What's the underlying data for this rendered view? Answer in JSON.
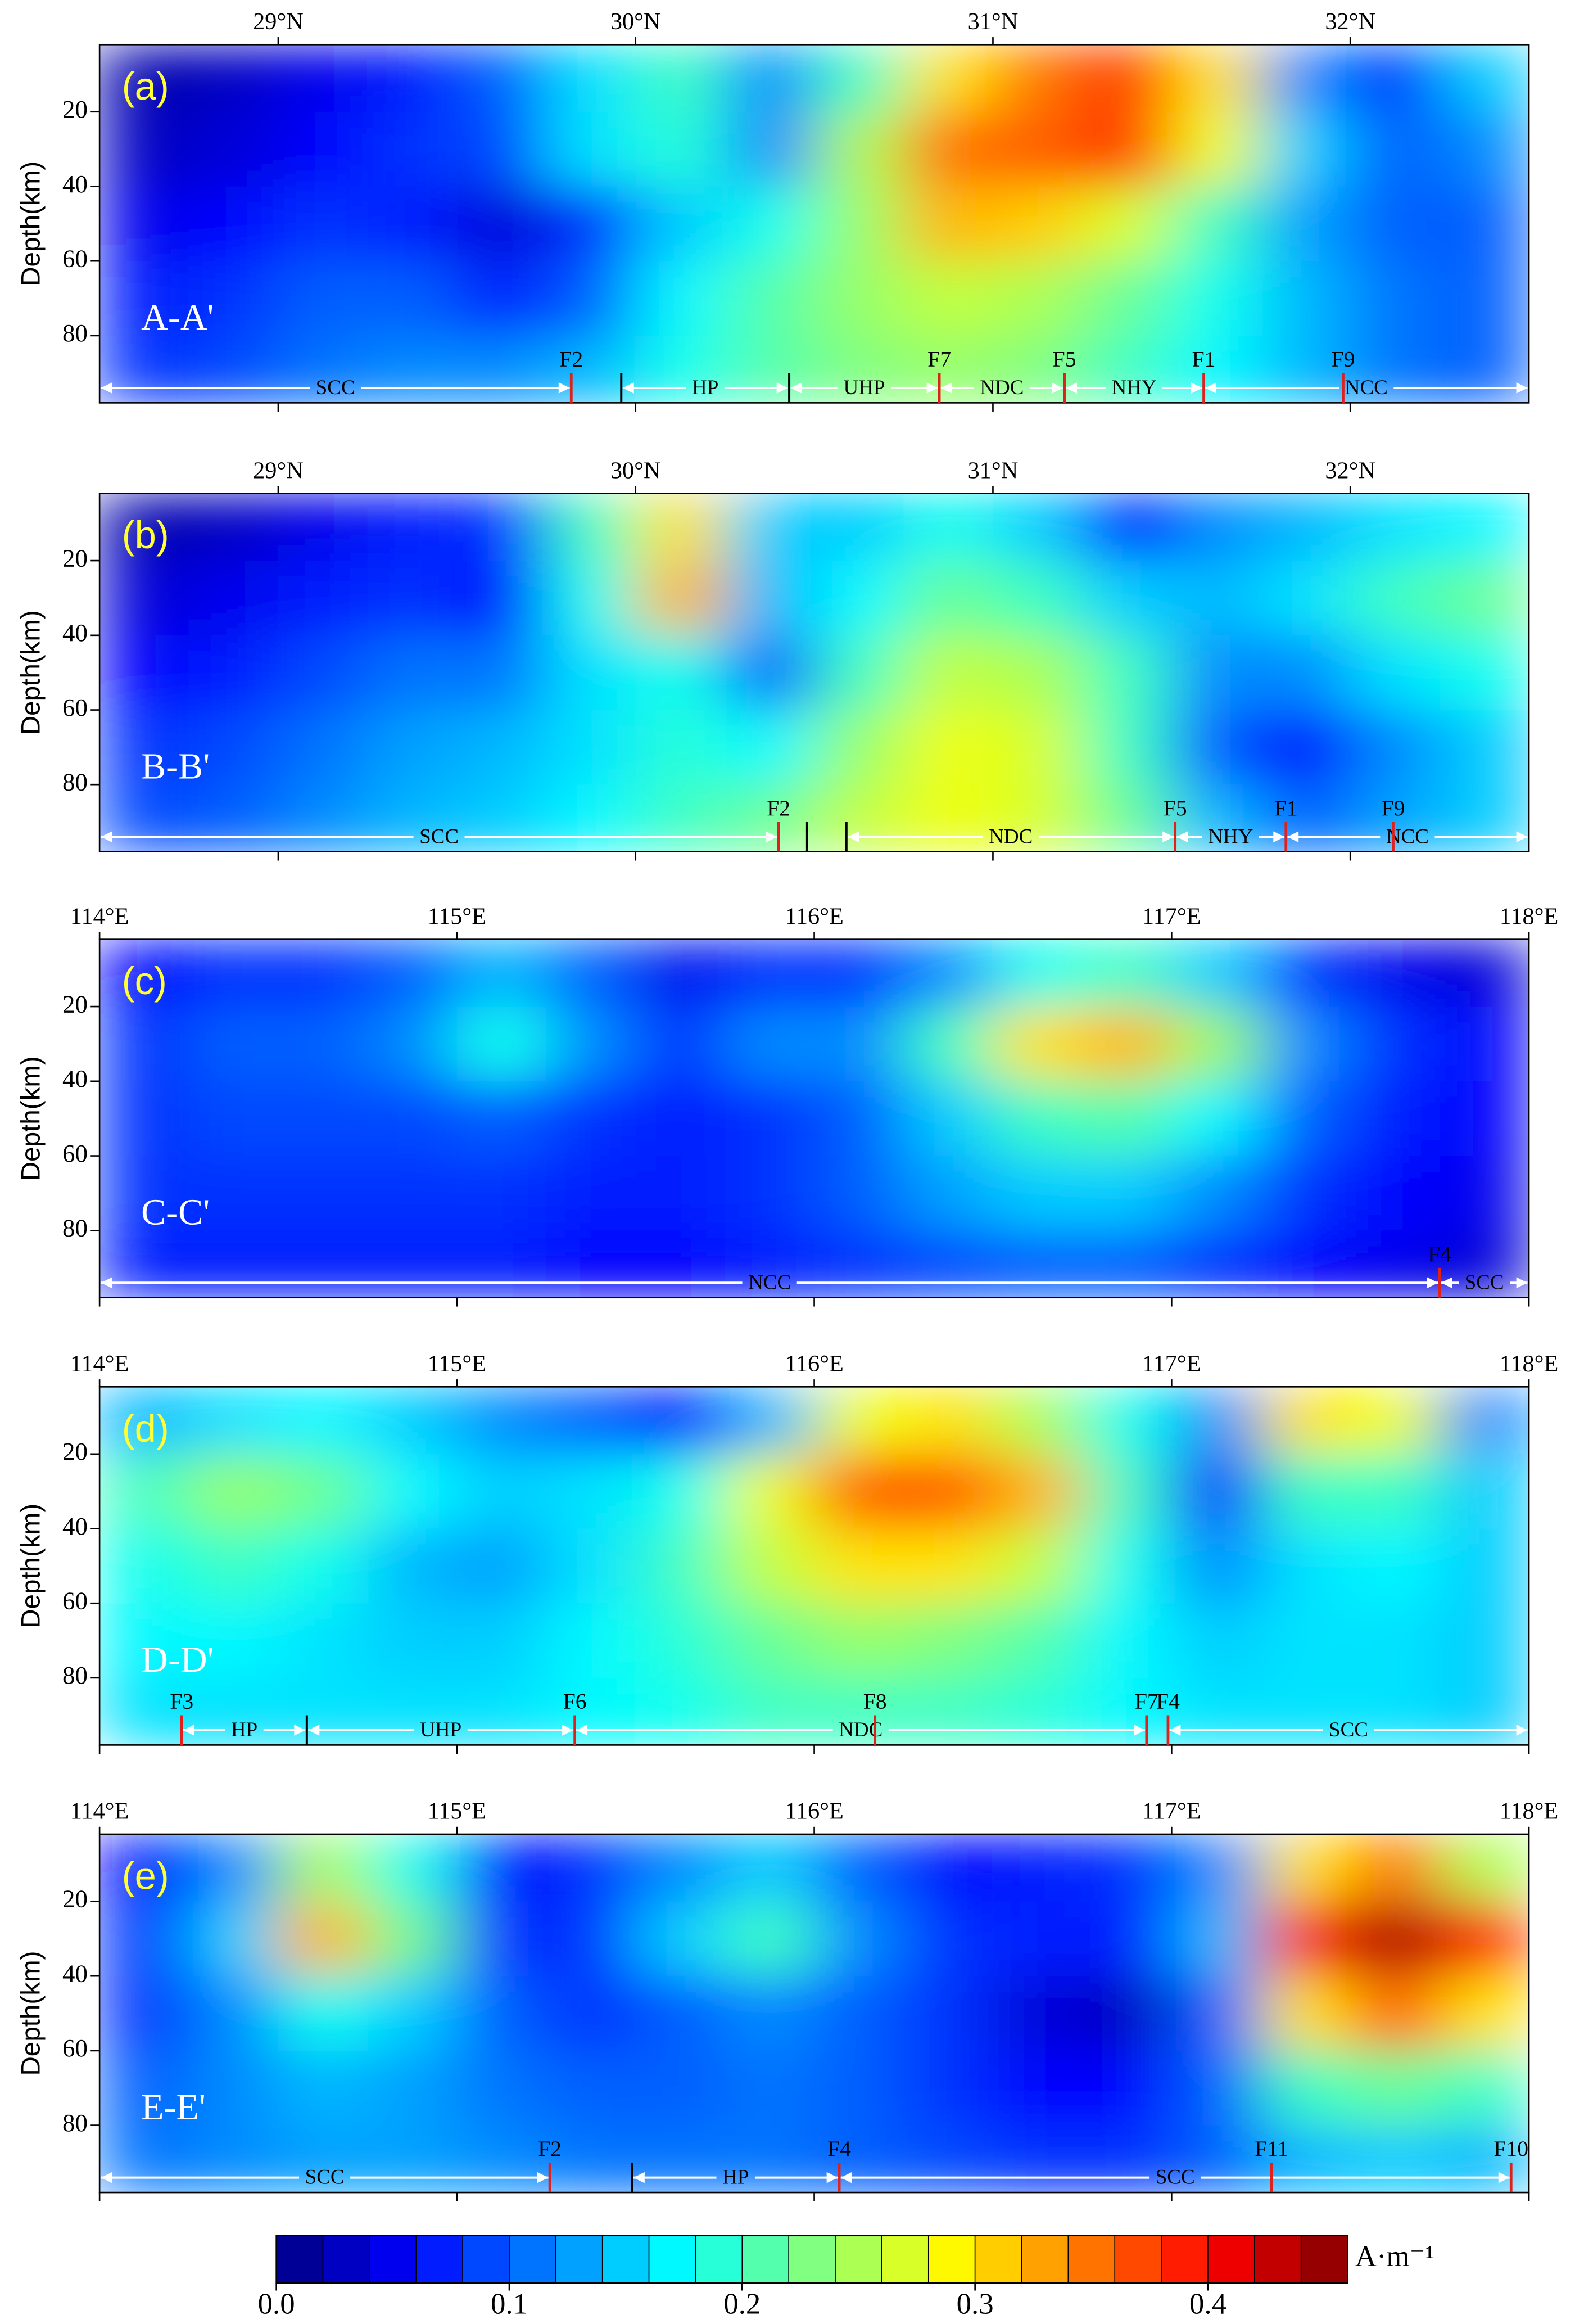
{
  "chart_data": [
    {
      "type": "heatmap",
      "panel": "(a)",
      "section": "A-A'",
      "ylabel": "Depth(km)",
      "xlim": [
        28.5,
        32.5
      ],
      "xticks": [
        {
          "value": 29,
          "label": "29°N"
        },
        {
          "value": 30,
          "label": "30°N"
        },
        {
          "value": 31,
          "label": "31°N"
        },
        {
          "value": 32,
          "label": "32°N"
        }
      ],
      "ylim": [
        98,
        2
      ],
      "yticks": [
        20,
        40,
        60,
        80
      ],
      "x": [
        28.625,
        28.875,
        29.125,
        29.375,
        29.625,
        29.875,
        30.125,
        30.375,
        30.625,
        30.875,
        31.125,
        31.375,
        31.625,
        31.875,
        32.125,
        32.375
      ],
      "y": [
        10,
        30,
        50,
        70,
        90
      ],
      "z": [
        [
          0.02,
          0.03,
          0.05,
          0.07,
          0.1,
          0.16,
          0.2,
          0.12,
          0.2,
          0.3,
          0.35,
          0.38,
          0.3,
          0.12,
          0.08,
          0.15
        ],
        [
          0.03,
          0.04,
          0.06,
          0.08,
          0.09,
          0.16,
          0.19,
          0.12,
          0.25,
          0.35,
          0.36,
          0.38,
          0.28,
          0.15,
          0.1,
          0.12
        ],
        [
          0.05,
          0.06,
          0.08,
          0.07,
          0.04,
          0.08,
          0.15,
          0.18,
          0.24,
          0.32,
          0.31,
          0.27,
          0.2,
          0.13,
          0.1,
          0.1
        ],
        [
          0.07,
          0.08,
          0.1,
          0.1,
          0.07,
          0.1,
          0.17,
          0.21,
          0.24,
          0.26,
          0.25,
          0.22,
          0.18,
          0.14,
          0.11,
          0.1
        ],
        [
          0.08,
          0.09,
          0.11,
          0.12,
          0.12,
          0.14,
          0.18,
          0.21,
          0.23,
          0.24,
          0.23,
          0.2,
          0.17,
          0.14,
          0.11,
          0.1
        ]
      ],
      "faults": [
        {
          "name": "F2",
          "x": 29.82
        },
        {
          "name": "F7",
          "x": 30.85
        },
        {
          "name": "F5",
          "x": 31.2
        },
        {
          "name": "F1",
          "x": 31.59
        },
        {
          "name": "F9",
          "x": 31.98
        }
      ],
      "boundaries": [
        29.96,
        30.43
      ],
      "units": [
        {
          "name": "SCC",
          "x0": 28.5,
          "x1": 29.82
        },
        {
          "name": "HP",
          "x0": 29.96,
          "x1": 30.43
        },
        {
          "name": "UHP",
          "x0": 30.43,
          "x1": 30.85
        },
        {
          "name": "NDC",
          "x0": 30.85,
          "x1": 31.2
        },
        {
          "name": "NHY",
          "x0": 31.2,
          "x1": 31.59
        },
        {
          "name": "NCC",
          "x0": 31.59,
          "x1": 32.5
        }
      ]
    },
    {
      "type": "heatmap",
      "panel": "(b)",
      "section": "B-B'",
      "ylabel": "Depth(km)",
      "xlim": [
        28.5,
        32.5
      ],
      "xticks": [
        {
          "value": 29,
          "label": "29°N"
        },
        {
          "value": 30,
          "label": "30°N"
        },
        {
          "value": 31,
          "label": "31°N"
        },
        {
          "value": 32,
          "label": "32°N"
        }
      ],
      "ylim": [
        98,
        2
      ],
      "yticks": [
        20,
        40,
        60,
        80
      ],
      "x": [
        28.625,
        28.875,
        29.125,
        29.375,
        29.625,
        29.875,
        30.125,
        30.375,
        30.625,
        30.875,
        31.125,
        31.375,
        31.625,
        31.875,
        32.125,
        32.375
      ],
      "y": [
        10,
        30,
        50,
        70,
        90
      ],
      "z": [
        [
          0.02,
          0.03,
          0.05,
          0.07,
          0.08,
          0.2,
          0.3,
          0.15,
          0.15,
          0.18,
          0.15,
          0.06,
          0.12,
          0.14,
          0.16,
          0.17
        ],
        [
          0.04,
          0.05,
          0.07,
          0.08,
          0.06,
          0.18,
          0.32,
          0.14,
          0.17,
          0.22,
          0.2,
          0.15,
          0.14,
          0.16,
          0.2,
          0.22
        ],
        [
          0.06,
          0.07,
          0.09,
          0.11,
          0.11,
          0.16,
          0.18,
          0.1,
          0.2,
          0.26,
          0.25,
          0.2,
          0.12,
          0.12,
          0.16,
          0.18
        ],
        [
          0.08,
          0.09,
          0.11,
          0.13,
          0.14,
          0.16,
          0.19,
          0.17,
          0.24,
          0.28,
          0.27,
          0.2,
          0.1,
          0.06,
          0.12,
          0.15
        ],
        [
          0.09,
          0.1,
          0.12,
          0.14,
          0.15,
          0.17,
          0.2,
          0.22,
          0.26,
          0.28,
          0.27,
          0.22,
          0.14,
          0.1,
          0.13,
          0.15
        ]
      ],
      "faults": [
        {
          "name": "F2",
          "x": 30.4
        },
        {
          "name": "F5",
          "x": 31.51
        },
        {
          "name": "F1",
          "x": 31.82
        },
        {
          "name": "F9",
          "x": 32.12
        }
      ],
      "boundaries": [
        30.48,
        30.59
      ],
      "units": [
        {
          "name": "SCC",
          "x0": 28.5,
          "x1": 30.4
        },
        {
          "name": "NDC",
          "x0": 30.59,
          "x1": 31.51
        },
        {
          "name": "NHY",
          "x0": 31.51,
          "x1": 31.82
        },
        {
          "name": "NCC",
          "x0": 31.82,
          "x1": 32.5
        }
      ]
    },
    {
      "type": "heatmap",
      "panel": "(c)",
      "section": "C-C'",
      "ylabel": "Depth(km)",
      "xlim": [
        114,
        118
      ],
      "xticks": [
        {
          "value": 114,
          "label": "114°E"
        },
        {
          "value": 115,
          "label": "115°E"
        },
        {
          "value": 116,
          "label": "116°E"
        },
        {
          "value": 117,
          "label": "117°E"
        },
        {
          "value": 118,
          "label": "118°E"
        }
      ],
      "ylim": [
        98,
        2
      ],
      "yticks": [
        20,
        40,
        60,
        80
      ],
      "x": [
        114.125,
        114.375,
        114.625,
        114.875,
        115.125,
        115.375,
        115.625,
        115.875,
        116.125,
        116.375,
        116.625,
        116.875,
        117.125,
        117.375,
        117.625,
        117.875
      ],
      "y": [
        10,
        30,
        50,
        70,
        90
      ],
      "z": [
        [
          0.06,
          0.08,
          0.08,
          0.1,
          0.14,
          0.1,
          0.05,
          0.08,
          0.08,
          0.12,
          0.18,
          0.2,
          0.15,
          0.08,
          0.05,
          0.04
        ],
        [
          0.08,
          0.1,
          0.1,
          0.12,
          0.18,
          0.12,
          0.08,
          0.12,
          0.12,
          0.2,
          0.3,
          0.32,
          0.24,
          0.12,
          0.08,
          0.06
        ],
        [
          0.08,
          0.09,
          0.09,
          0.09,
          0.1,
          0.08,
          0.07,
          0.08,
          0.1,
          0.15,
          0.2,
          0.21,
          0.17,
          0.1,
          0.07,
          0.06
        ],
        [
          0.08,
          0.08,
          0.08,
          0.08,
          0.08,
          0.07,
          0.07,
          0.08,
          0.1,
          0.13,
          0.15,
          0.15,
          0.12,
          0.08,
          0.06,
          0.05
        ],
        [
          0.07,
          0.07,
          0.07,
          0.07,
          0.07,
          0.06,
          0.06,
          0.07,
          0.08,
          0.09,
          0.1,
          0.1,
          0.08,
          0.06,
          0.05,
          0.04
        ]
      ],
      "faults": [
        {
          "name": "F4",
          "x": 117.75
        }
      ],
      "boundaries": [],
      "units": [
        {
          "name": "NCC",
          "x0": 114,
          "x1": 117.75
        },
        {
          "name": "SCC",
          "x0": 117.75,
          "x1": 118
        }
      ]
    },
    {
      "type": "heatmap",
      "panel": "(d)",
      "section": "D-D'",
      "ylabel": "Depth(km)",
      "xlim": [
        114,
        118
      ],
      "xticks": [
        {
          "value": 114,
          "label": "114°E"
        },
        {
          "value": 115,
          "label": "115°E"
        },
        {
          "value": 116,
          "label": "116°E"
        },
        {
          "value": 117,
          "label": "117°E"
        },
        {
          "value": 118,
          "label": "118°E"
        }
      ],
      "ylim": [
        98,
        2
      ],
      "yticks": [
        20,
        40,
        60,
        80
      ],
      "x": [
        114.125,
        114.375,
        114.625,
        114.875,
        115.125,
        115.375,
        115.625,
        115.875,
        116.125,
        116.375,
        116.625,
        116.875,
        117.125,
        117.375,
        117.625,
        117.875
      ],
      "y": [
        10,
        30,
        50,
        70,
        90
      ],
      "z": [
        [
          0.14,
          0.16,
          0.17,
          0.15,
          0.12,
          0.1,
          0.06,
          0.14,
          0.28,
          0.3,
          0.25,
          0.18,
          0.12,
          0.3,
          0.28,
          0.12
        ],
        [
          0.2,
          0.24,
          0.22,
          0.17,
          0.15,
          0.16,
          0.18,
          0.28,
          0.36,
          0.36,
          0.32,
          0.2,
          0.06,
          0.2,
          0.2,
          0.15
        ],
        [
          0.18,
          0.2,
          0.18,
          0.14,
          0.13,
          0.16,
          0.2,
          0.26,
          0.3,
          0.3,
          0.26,
          0.18,
          0.12,
          0.16,
          0.17,
          0.15
        ],
        [
          0.17,
          0.17,
          0.16,
          0.15,
          0.15,
          0.17,
          0.19,
          0.22,
          0.24,
          0.23,
          0.21,
          0.17,
          0.15,
          0.16,
          0.16,
          0.15
        ],
        [
          0.16,
          0.16,
          0.16,
          0.16,
          0.16,
          0.17,
          0.18,
          0.2,
          0.2,
          0.2,
          0.19,
          0.17,
          0.16,
          0.16,
          0.16,
          0.15
        ]
      ],
      "faults": [
        {
          "name": "F3",
          "x": 114.23
        },
        {
          "name": "F6",
          "x": 115.33
        },
        {
          "name": "F8",
          "x": 116.17
        },
        {
          "name": "F7",
          "x": 116.93
        },
        {
          "name": "F4",
          "x": 116.99
        }
      ],
      "boundaries": [
        114.58
      ],
      "units": [
        {
          "name": "HP",
          "x0": 114.23,
          "x1": 114.58
        },
        {
          "name": "UHP",
          "x0": 114.58,
          "x1": 115.33
        },
        {
          "name": "NDC",
          "x0": 115.33,
          "x1": 116.93
        },
        {
          "name": "SCC",
          "x0": 116.99,
          "x1": 118
        }
      ]
    },
    {
      "type": "heatmap",
      "panel": "(e)",
      "section": "E-E'",
      "ylabel": "Depth(km)",
      "xlim": [
        114,
        118
      ],
      "xticks": [
        {
          "value": 114,
          "label": "114°E"
        },
        {
          "value": 115,
          "label": "115°E"
        },
        {
          "value": 116,
          "label": "116°E"
        },
        {
          "value": 117,
          "label": "117°E"
        },
        {
          "value": 118,
          "label": "118°E"
        }
      ],
      "ylim": [
        98,
        2
      ],
      "yticks": [
        20,
        40,
        60,
        80
      ],
      "x": [
        114.125,
        114.375,
        114.625,
        114.875,
        115.125,
        115.375,
        115.625,
        115.875,
        116.125,
        116.375,
        116.625,
        116.875,
        117.125,
        117.375,
        117.625,
        117.875
      ],
      "y": [
        10,
        30,
        50,
        70,
        90
      ],
      "z": [
        [
          0.06,
          0.12,
          0.25,
          0.18,
          0.06,
          0.08,
          0.12,
          0.15,
          0.1,
          0.06,
          0.07,
          0.08,
          0.12,
          0.3,
          0.35,
          0.25
        ],
        [
          0.08,
          0.15,
          0.32,
          0.22,
          0.08,
          0.08,
          0.15,
          0.2,
          0.12,
          0.08,
          0.07,
          0.07,
          0.14,
          0.38,
          0.44,
          0.38
        ],
        [
          0.08,
          0.12,
          0.18,
          0.15,
          0.1,
          0.08,
          0.1,
          0.12,
          0.1,
          0.08,
          0.04,
          0.03,
          0.1,
          0.3,
          0.36,
          0.3
        ],
        [
          0.1,
          0.12,
          0.14,
          0.13,
          0.11,
          0.1,
          0.1,
          0.11,
          0.1,
          0.08,
          0.06,
          0.06,
          0.1,
          0.2,
          0.22,
          0.2
        ],
        [
          0.11,
          0.12,
          0.13,
          0.13,
          0.12,
          0.11,
          0.11,
          0.11,
          0.1,
          0.09,
          0.08,
          0.08,
          0.1,
          0.14,
          0.15,
          0.14
        ]
      ],
      "faults": [
        {
          "name": "F2",
          "x": 115.26
        },
        {
          "name": "F4",
          "x": 116.07
        },
        {
          "name": "F11",
          "x": 117.28
        },
        {
          "name": "F10",
          "x": 117.95
        }
      ],
      "boundaries": [
        115.49
      ],
      "units": [
        {
          "name": "SCC",
          "x0": 114,
          "x1": 115.26
        },
        {
          "name": "HP",
          "x0": 115.49,
          "x1": 116.07
        },
        {
          "name": "SCC",
          "x0": 116.07,
          "x1": 117.95
        }
      ]
    }
  ],
  "colorbar": {
    "clim": [
      0,
      0.46
    ],
    "ticks": [
      {
        "value": 0,
        "label": "0.0"
      },
      0.1,
      0.2,
      0.3,
      0.4
    ],
    "label": "A·m⁻¹"
  }
}
